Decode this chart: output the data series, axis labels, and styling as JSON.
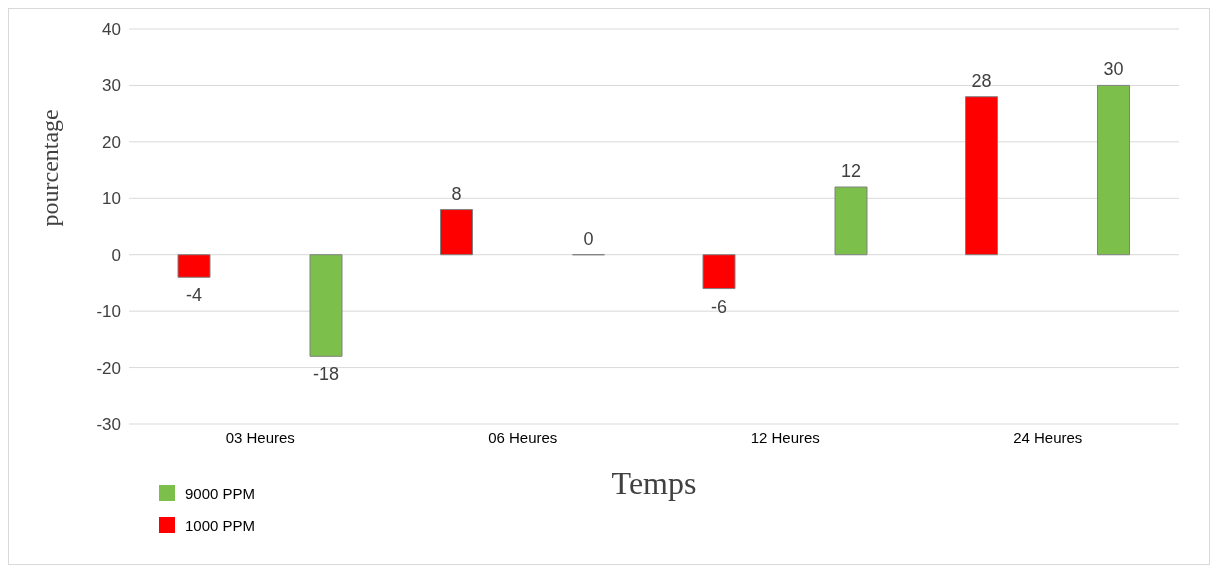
{
  "chart_data": {
    "type": "bar",
    "xlabel": "Temps",
    "ylabel": "pourcentage",
    "categories": [
      "03 Heures",
      "06 Heures",
      "12 Heures",
      "24 Heures"
    ],
    "series": [
      {
        "name": "1000 PPM",
        "color": "#ff0000",
        "values": [
          -4,
          8,
          -6,
          28
        ]
      },
      {
        "name": "9000 PPM",
        "color": "#7cc04b",
        "values": [
          -18,
          0,
          12,
          30
        ]
      }
    ],
    "ylim": [
      -30,
      40
    ],
    "yticks": [
      -30,
      -20,
      -10,
      0,
      10,
      20,
      30,
      40
    ],
    "grid": "y",
    "legend": "bottom left",
    "data_labels": true
  }
}
